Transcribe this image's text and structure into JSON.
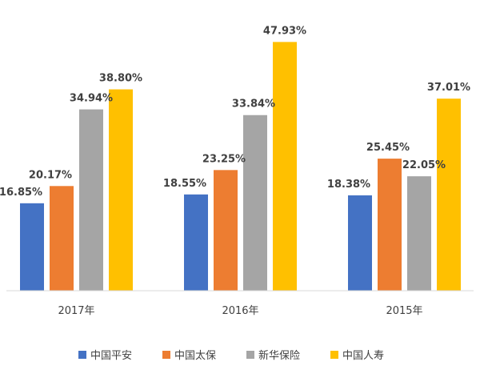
{
  "chart_data": {
    "type": "bar",
    "title": "",
    "xlabel": "",
    "ylabel": "",
    "categories": [
      "2017年",
      "2016年",
      "2015年"
    ],
    "series": [
      {
        "name": "中国平安",
        "color": "#4472C4",
        "values": [
          16.85,
          18.55,
          18.38
        ],
        "labels": [
          "16.85%",
          "18.55%",
          "18.38%"
        ]
      },
      {
        "name": "中国太保",
        "color": "#ED7D31",
        "values": [
          20.17,
          23.25,
          25.45
        ],
        "labels": [
          "20.17%",
          "23.25%",
          "25.45%"
        ]
      },
      {
        "name": "新华保险",
        "color": "#A5A5A5",
        "values": [
          34.94,
          33.84,
          22.05
        ],
        "labels": [
          "34.94%",
          "33.84%",
          "22.05%"
        ]
      },
      {
        "name": "中国人寿",
        "color": "#FFC000",
        "values": [
          38.8,
          47.93,
          37.01
        ],
        "labels": [
          "38.80%",
          "47.93%",
          "37.01%"
        ]
      }
    ],
    "ylim": [
      0,
      50
    ],
    "grid": false,
    "legend_position": "bottom"
  }
}
